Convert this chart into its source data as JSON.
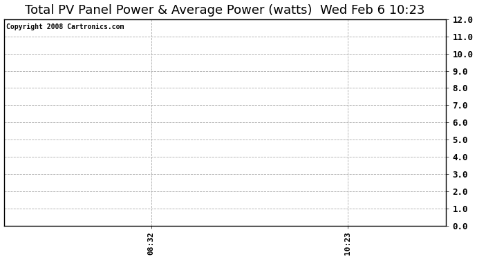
{
  "title": "Total PV Panel Power & Average Power (watts)  Wed Feb 6 10:23",
  "copyright_text": "Copyright 2008 Cartronics.com",
  "background_color": "#ffffff",
  "plot_background_color": "#ffffff",
  "border_color": "#000000",
  "ylim": [
    0.0,
    12.0
  ],
  "yticks": [
    0.0,
    1.0,
    2.0,
    3.0,
    4.0,
    5.0,
    6.0,
    7.0,
    8.0,
    9.0,
    10.0,
    11.0,
    12.0
  ],
  "xtick_labels": [
    "08:32",
    "10:23"
  ],
  "xtick_positions": [
    0.333,
    0.777
  ],
  "vline_positions": [
    0.333,
    0.777
  ],
  "grid_color": "#aaaaaa",
  "grid_linestyle": "--",
  "title_fontsize": 13,
  "copyright_fontsize": 7,
  "ytick_fontsize": 9,
  "xtick_fontsize": 8
}
